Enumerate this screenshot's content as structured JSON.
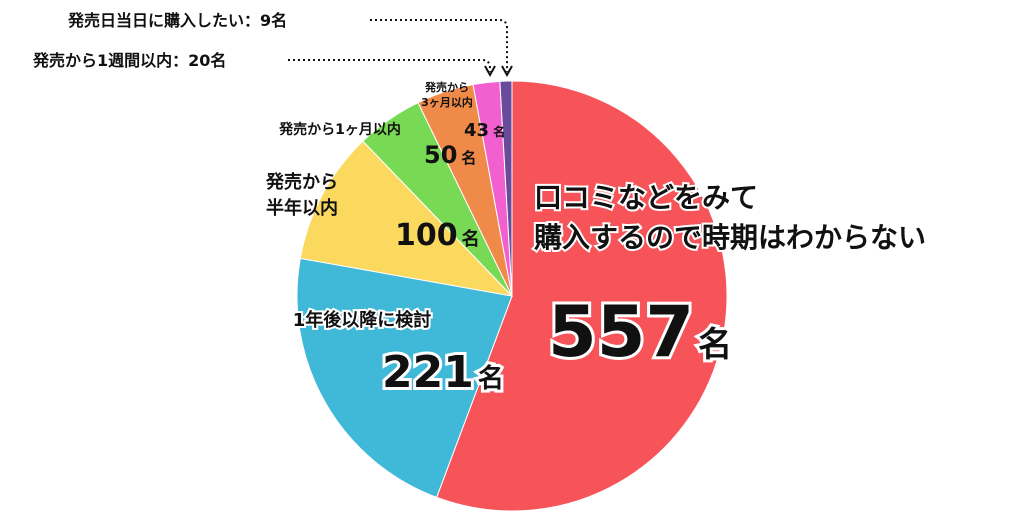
{
  "chart_data": {
    "type": "pie",
    "unit": "名",
    "slices": [
      {
        "label": "口コミなどをみて\n購入するので時期はわからない",
        "value": 557,
        "value_text": "557",
        "color": "#f7545a"
      },
      {
        "label": "1年後以降に検討",
        "value": 221,
        "value_text": "221",
        "color": "#40b8d8"
      },
      {
        "label": "発売から\n半年以内",
        "value": 100,
        "value_text": "100",
        "color": "#fbd95e"
      },
      {
        "label": "発売から1ヶ月以内",
        "value": 50,
        "value_text": "50",
        "color": "#78d954"
      },
      {
        "label": "発売から\n3ヶ月以内",
        "value": 43,
        "value_text": "43",
        "color": "#f08a49"
      },
      {
        "label": "発売から1週間以内",
        "value": 20,
        "value_text": "20",
        "color": "#f25fcf"
      },
      {
        "label": "発売日当日に購入したい",
        "value": 9,
        "value_text": "9",
        "color": "#6a4a9a"
      }
    ],
    "callouts": [
      {
        "text": "発売日当日に購入したい：9名"
      },
      {
        "text": "発売から1週間以内：20名"
      }
    ]
  }
}
